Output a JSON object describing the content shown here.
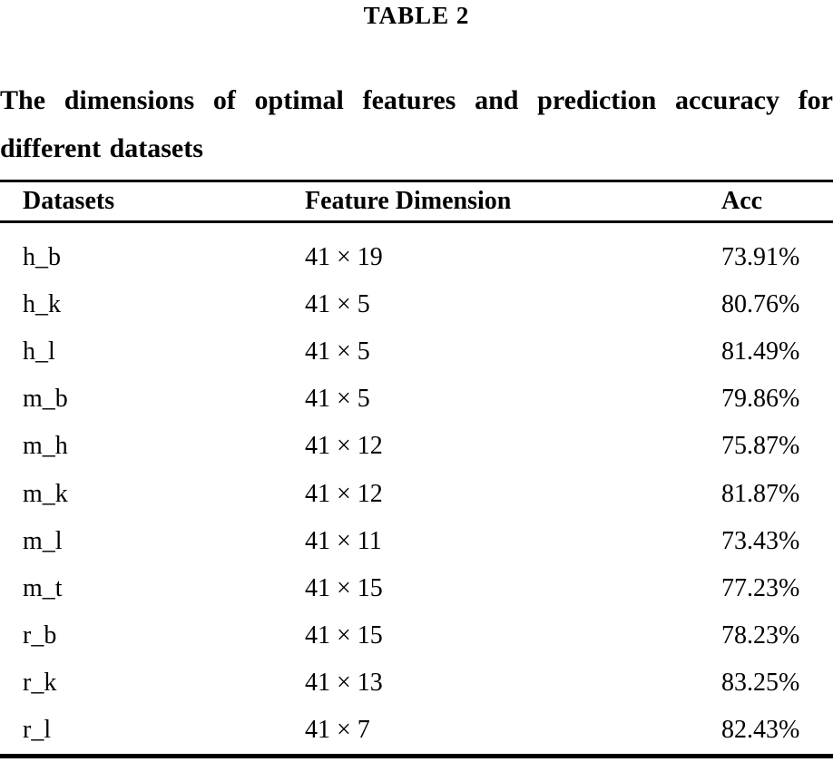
{
  "table_title": "TABLE 2",
  "caption": "The dimensions of optimal features and prediction accuracy for different datasets",
  "table": {
    "headers": [
      "Datasets",
      "Feature Dimension",
      "Acc"
    ],
    "rows": [
      {
        "dataset": "h_b",
        "dimension": "41 × 19",
        "acc": "73.91%"
      },
      {
        "dataset": "h_k",
        "dimension": "41 × 5",
        "acc": "80.76%"
      },
      {
        "dataset": "h_l",
        "dimension": "41 × 5",
        "acc": "81.49%"
      },
      {
        "dataset": "m_b",
        "dimension": "41 × 5",
        "acc": "79.86%"
      },
      {
        "dataset": "m_h",
        "dimension": "41 × 12",
        "acc": "75.87%"
      },
      {
        "dataset": "m_k",
        "dimension": "41 × 12",
        "acc": "81.87%"
      },
      {
        "dataset": "m_l",
        "dimension": "41 × 11",
        "acc": "73.43%"
      },
      {
        "dataset": "m_t",
        "dimension": "41 × 15",
        "acc": "77.23%"
      },
      {
        "dataset": "r_b",
        "dimension": "41 × 15",
        "acc": "78.23%"
      },
      {
        "dataset": "r_k",
        "dimension": "41 × 13",
        "acc": "83.25%"
      },
      {
        "dataset": "r_l",
        "dimension": "41 × 7",
        "acc": "82.43%"
      }
    ]
  },
  "colors": {
    "text": "#000000",
    "background": "#ffffff",
    "rule": "#000000"
  }
}
